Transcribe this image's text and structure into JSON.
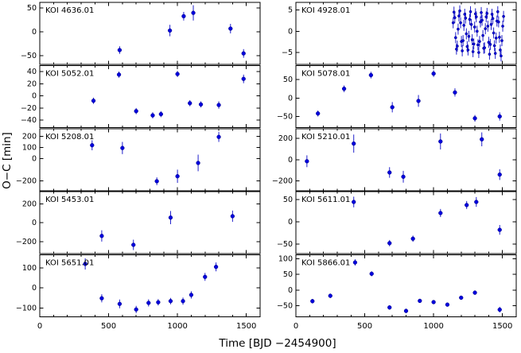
{
  "figure": {
    "background": "#ffffff",
    "frame_color": "#000000",
    "marker_color": "#0000dd",
    "marker_edge_color": "#000080",
    "errorbar_color": "#2222cc"
  },
  "chart_data": {
    "type": "scatter",
    "title": "",
    "xlabel": "Time [BJD −2454900]",
    "ylabel": "O−C [min]",
    "xlim": [
      0,
      1600
    ],
    "x_ticks": [
      0,
      500,
      1000,
      1500
    ],
    "x_minor_step": 100,
    "legend": "none",
    "grid": false,
    "panels": [
      {
        "label": "KOI 4636.01",
        "ylim": [
          -68,
          62
        ],
        "yticks": [
          -50,
          0,
          50
        ],
        "default_err": 10,
        "points": [
          [
            580,
            -38,
            8
          ],
          [
            945,
            3,
            12
          ],
          [
            1045,
            33,
            9
          ],
          [
            1115,
            40,
            16
          ],
          [
            1385,
            7,
            10
          ],
          [
            1480,
            -45,
            9
          ]
        ]
      },
      {
        "label": "KOI 4928.01",
        "ylim": [
          -7.8,
          6.8
        ],
        "yticks": [
          -5,
          0,
          5
        ],
        "default_err": 1.3,
        "marker_r": 1.6,
        "points": [
          [
            1142,
            2
          ],
          [
            1148,
            4.5
          ],
          [
            1154,
            3.2
          ],
          [
            1160,
            -1.5
          ],
          [
            1166,
            -4.2
          ],
          [
            1172,
            -3.5
          ],
          [
            1178,
            0.5
          ],
          [
            1184,
            3.6
          ],
          [
            1190,
            4.8
          ],
          [
            1196,
            2.0
          ],
          [
            1202,
            -2.4
          ],
          [
            1208,
            -4.6
          ],
          [
            1214,
            -2.2
          ],
          [
            1220,
            1.4
          ],
          [
            1226,
            4.0
          ],
          [
            1232,
            3.1
          ],
          [
            1238,
            -0.6
          ],
          [
            1244,
            -3.6
          ],
          [
            1250,
            -4.4
          ],
          [
            1256,
            -1.2
          ],
          [
            1262,
            2.8
          ],
          [
            1268,
            4.6
          ],
          [
            1274,
            1.6
          ],
          [
            1280,
            -2.0
          ],
          [
            1286,
            -4.8
          ],
          [
            1292,
            -3.0
          ],
          [
            1298,
            1.0
          ],
          [
            1304,
            4.1
          ],
          [
            1310,
            3.4
          ],
          [
            1316,
            0.0
          ],
          [
            1322,
            -3.2
          ],
          [
            1328,
            -5.0
          ],
          [
            1334,
            -2.4
          ],
          [
            1340,
            2.2
          ],
          [
            1346,
            4.4
          ],
          [
            1352,
            2.6
          ],
          [
            1358,
            -1.0
          ],
          [
            1364,
            -4.0
          ],
          [
            1370,
            -3.9
          ],
          [
            1376,
            0.6
          ],
          [
            1382,
            3.4
          ],
          [
            1388,
            4.2
          ],
          [
            1394,
            1.2
          ],
          [
            1400,
            -2.6
          ],
          [
            1406,
            -5.4
          ],
          [
            1412,
            -3.1
          ],
          [
            1418,
            1.6
          ],
          [
            1424,
            4.0
          ],
          [
            1430,
            3.0
          ],
          [
            1436,
            -0.4
          ],
          [
            1442,
            -3.4
          ],
          [
            1448,
            -5.2
          ],
          [
            1454,
            -1.6
          ],
          [
            1460,
            2.4
          ],
          [
            1466,
            4.6
          ],
          [
            1472,
            2.2
          ],
          [
            1478,
            -1.4
          ],
          [
            1484,
            -4.4
          ],
          [
            1490,
            -5.8
          ],
          [
            1496,
            -2.2
          ],
          [
            1502,
            1.2
          ],
          [
            1508,
            3.5
          ]
        ]
      },
      {
        "label": "KOI 5052.01",
        "ylim": [
          -52,
          50
        ],
        "yticks": [
          -40,
          -20,
          0,
          20,
          40
        ],
        "default_err": 5,
        "points": [
          [
            390,
            -8,
            5
          ],
          [
            575,
            35,
            5
          ],
          [
            700,
            -25,
            5
          ],
          [
            820,
            -32,
            5
          ],
          [
            880,
            -30,
            5
          ],
          [
            1000,
            36,
            5
          ],
          [
            1090,
            -12,
            5
          ],
          [
            1170,
            -14,
            5
          ],
          [
            1300,
            -15,
            6
          ],
          [
            1480,
            28,
            7
          ]
        ]
      },
      {
        "label": "KOI 5078.01",
        "ylim": [
          -80,
          88
        ],
        "yticks": [
          -50,
          0,
          50
        ],
        "default_err": 10,
        "points": [
          [
            160,
            -42,
            8
          ],
          [
            350,
            25,
            9
          ],
          [
            545,
            62,
            9
          ],
          [
            700,
            -25,
            14
          ],
          [
            890,
            -8,
            16
          ],
          [
            1000,
            66,
            9
          ],
          [
            1155,
            15,
            11
          ],
          [
            1300,
            -55,
            9
          ],
          [
            1480,
            -50,
            11
          ]
        ]
      },
      {
        "label": "KOI 5208.01",
        "ylim": [
          -290,
          270
        ],
        "yticks": [
          -200,
          0,
          100,
          200
        ],
        "default_err": 50,
        "points": [
          [
            380,
            120,
            45
          ],
          [
            600,
            95,
            55
          ],
          [
            850,
            -205,
            35
          ],
          [
            1000,
            -160,
            60
          ],
          [
            1150,
            -40,
            75
          ],
          [
            1300,
            195,
            45
          ]
        ]
      },
      {
        "label": "KOI 5210.01",
        "ylim": [
          -290,
          290
        ],
        "yticks": [
          -200,
          0,
          200
        ],
        "default_err": 60,
        "points": [
          [
            80,
            -15,
            55
          ],
          [
            420,
            150,
            85
          ],
          [
            680,
            -120,
            50
          ],
          [
            780,
            -160,
            55
          ],
          [
            1050,
            170,
            75
          ],
          [
            1350,
            190,
            65
          ],
          [
            1480,
            -140,
            50
          ]
        ]
      },
      {
        "label": "KOI 5453.01",
        "ylim": [
          -330,
          330
        ],
        "yticks": [
          -200,
          0,
          200
        ],
        "default_err": 60,
        "points": [
          [
            450,
            -140,
            60
          ],
          [
            680,
            -235,
            55
          ],
          [
            950,
            55,
            70
          ],
          [
            1400,
            70,
            60
          ]
        ]
      },
      {
        "label": "KOI 5611.01",
        "ylim": [
          -72,
          68
        ],
        "yticks": [
          -50,
          0,
          50
        ],
        "default_err": 10,
        "points": [
          [
            420,
            45,
            12
          ],
          [
            680,
            -48,
            7
          ],
          [
            850,
            -38,
            7
          ],
          [
            1050,
            20,
            9
          ],
          [
            1240,
            38,
            9
          ],
          [
            1310,
            45,
            11
          ],
          [
            1480,
            -18,
            11
          ]
        ]
      },
      {
        "label": "KOI 5651.01",
        "ylim": [
          -145,
          165
        ],
        "yticks": [
          -100,
          0,
          100
        ],
        "default_err": 20,
        "points": [
          [
            330,
            120,
            28
          ],
          [
            450,
            -52,
            20
          ],
          [
            580,
            -80,
            22
          ],
          [
            700,
            -108,
            18
          ],
          [
            790,
            -75,
            18
          ],
          [
            860,
            -72,
            16
          ],
          [
            950,
            -66,
            16
          ],
          [
            1040,
            -66,
            18
          ],
          [
            1100,
            -35,
            18
          ],
          [
            1200,
            55,
            20
          ],
          [
            1280,
            105,
            22
          ]
        ]
      },
      {
        "label": "KOI 5866.01",
        "ylim": [
          -85,
          112
        ],
        "yticks": [
          -50,
          0,
          50,
          100
        ],
        "default_err": 8,
        "points": [
          [
            120,
            -35,
            7
          ],
          [
            250,
            -18,
            7
          ],
          [
            430,
            88,
            10
          ],
          [
            550,
            52,
            8
          ],
          [
            680,
            -55,
            7
          ],
          [
            800,
            -66,
            7
          ],
          [
            900,
            -34,
            6
          ],
          [
            1000,
            -38,
            6
          ],
          [
            1100,
            -46,
            6
          ],
          [
            1200,
            -24,
            6
          ],
          [
            1300,
            -8,
            7
          ],
          [
            1480,
            -62,
            9
          ]
        ]
      }
    ]
  }
}
